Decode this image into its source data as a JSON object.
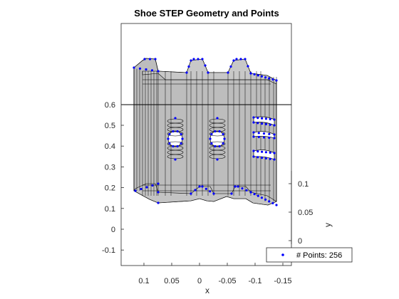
{
  "chart_data": {
    "type": "scatter",
    "title": "Shoe STEP Geometry and Points",
    "xlabel": "x",
    "ylabel": "y",
    "left_axis_ticks": [
      "0.6",
      "0.5",
      "0.4",
      "0.3",
      "0.2",
      "0.1",
      "0",
      "-0.1"
    ],
    "right_axis_ticks": [
      "0.1",
      "0.05",
      "0"
    ],
    "x_ticks": [
      "0.1",
      "0.05",
      "0",
      "-0.05",
      "-0.1",
      "-0.15"
    ],
    "xlim": [
      0.125,
      -0.125
    ],
    "legend": {
      "entries": [
        "# Points: 256"
      ],
      "location": "bottom-right"
    },
    "series": [
      {
        "name": "# Points: 256",
        "marker": "point",
        "color": "#0000ff",
        "count": 256
      }
    ],
    "colors": {
      "surface": "#bdbdbd",
      "edge": "#000000",
      "points": "#0000ff"
    }
  }
}
